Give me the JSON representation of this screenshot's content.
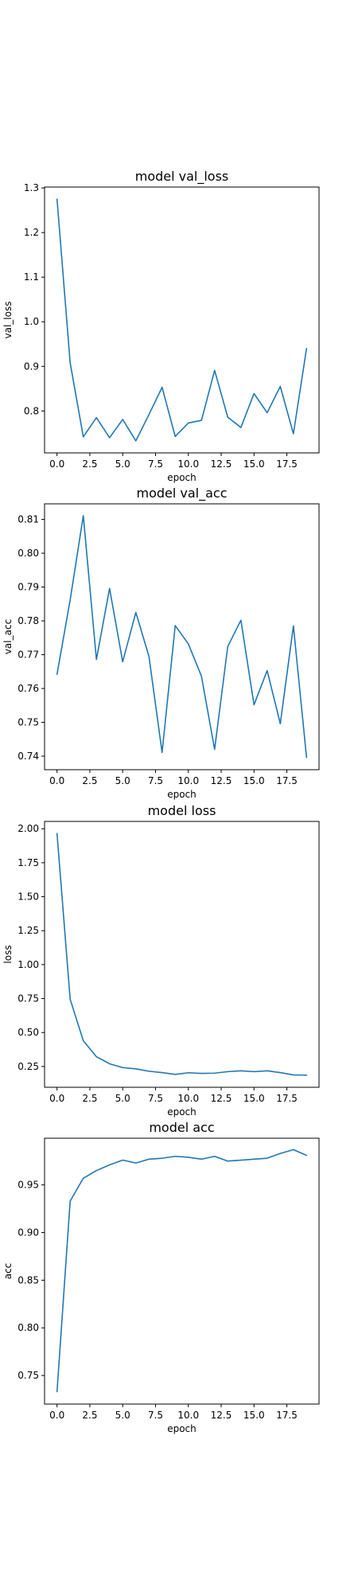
{
  "page": {
    "background": "#ffffff",
    "line_color": "#1f77b4",
    "axis_color": "#000000"
  },
  "chart_data": [
    {
      "type": "line",
      "title": "model val_loss",
      "xlabel": "epoch",
      "ylabel": "val_loss",
      "x": [
        0,
        1,
        2,
        3,
        4,
        5,
        6,
        7,
        8,
        9,
        10,
        11,
        12,
        13,
        14,
        15,
        16,
        17,
        18,
        19
      ],
      "series": [
        {
          "values": [
            1.275,
            0.908,
            0.742,
            0.785,
            0.74,
            0.781,
            0.733,
            0.792,
            0.853,
            0.743,
            0.773,
            0.779,
            0.891,
            0.786,
            0.763,
            0.839,
            0.796,
            0.855,
            0.749,
            0.94
          ]
        }
      ],
      "xlim": [
        -0.95,
        19.95
      ],
      "ylim": [
        0.706,
        1.302
      ],
      "xticks": [
        0.0,
        2.5,
        5.0,
        7.5,
        10.0,
        12.5,
        15.0,
        17.5
      ],
      "xtick_labels": [
        "0.0",
        "2.5",
        "5.0",
        "7.5",
        "10.0",
        "12.5",
        "15.0",
        "17.5"
      ],
      "yticks": [
        0.8,
        0.9,
        1.0,
        1.1,
        1.2,
        1.3
      ],
      "ytick_labels": [
        "0.8",
        "0.9",
        "1.0",
        "1.1",
        "1.2",
        "1.3"
      ],
      "grid": false,
      "legend": "none"
    },
    {
      "type": "line",
      "title": "model val_acc",
      "xlabel": "epoch",
      "ylabel": "val_acc",
      "x": [
        0,
        1,
        2,
        3,
        4,
        5,
        6,
        7,
        8,
        9,
        10,
        11,
        12,
        13,
        14,
        15,
        16,
        17,
        18,
        19
      ],
      "series": [
        {
          "values": [
            0.7642,
            0.7862,
            0.8111,
            0.7686,
            0.7896,
            0.7679,
            0.7825,
            0.7695,
            0.7411,
            0.7786,
            0.7732,
            0.7636,
            0.742,
            0.7724,
            0.7802,
            0.7552,
            0.7653,
            0.7496,
            0.7785,
            0.7396
          ]
        }
      ],
      "xlim": [
        -0.95,
        19.95
      ],
      "ylim": [
        0.736,
        0.8146
      ],
      "xticks": [
        0.0,
        2.5,
        5.0,
        7.5,
        10.0,
        12.5,
        15.0,
        17.5
      ],
      "xtick_labels": [
        "0.0",
        "2.5",
        "5.0",
        "7.5",
        "10.0",
        "12.5",
        "15.0",
        "17.5"
      ],
      "yticks": [
        0.74,
        0.75,
        0.76,
        0.77,
        0.78,
        0.79,
        0.8,
        0.81
      ],
      "ytick_labels": [
        "0.74",
        "0.75",
        "0.76",
        "0.77",
        "0.78",
        "0.79",
        "0.80",
        "0.81"
      ],
      "grid": false,
      "legend": "none"
    },
    {
      "type": "line",
      "title": "model loss",
      "xlabel": "epoch",
      "ylabel": "loss",
      "x": [
        0,
        1,
        2,
        3,
        4,
        5,
        6,
        7,
        8,
        9,
        10,
        11,
        12,
        13,
        14,
        15,
        16,
        17,
        18,
        19
      ],
      "series": [
        {
          "values": [
            1.965,
            0.745,
            0.44,
            0.322,
            0.27,
            0.242,
            0.233,
            0.215,
            0.205,
            0.192,
            0.204,
            0.199,
            0.201,
            0.212,
            0.218,
            0.212,
            0.218,
            0.205,
            0.188,
            0.186
          ]
        }
      ],
      "xlim": [
        -0.95,
        19.95
      ],
      "ylim": [
        0.097,
        2.054
      ],
      "xticks": [
        0.0,
        2.5,
        5.0,
        7.5,
        10.0,
        12.5,
        15.0,
        17.5
      ],
      "xtick_labels": [
        "0.0",
        "2.5",
        "5.0",
        "7.5",
        "10.0",
        "12.5",
        "15.0",
        "17.5"
      ],
      "yticks": [
        0.25,
        0.5,
        0.75,
        1.0,
        1.25,
        1.5,
        1.75,
        2.0
      ],
      "ytick_labels": [
        "0.25",
        "0.50",
        "0.75",
        "1.00",
        "1.25",
        "1.50",
        "1.75",
        "2.00"
      ],
      "grid": false,
      "legend": "none"
    },
    {
      "type": "line",
      "title": "model acc",
      "xlabel": "epoch",
      "ylabel": "acc",
      "x": [
        0,
        1,
        2,
        3,
        4,
        5,
        6,
        7,
        8,
        9,
        10,
        11,
        12,
        13,
        14,
        15,
        16,
        17,
        18,
        19
      ],
      "series": [
        {
          "values": [
            0.733,
            0.933,
            0.957,
            0.965,
            0.971,
            0.976,
            0.973,
            0.977,
            0.978,
            0.98,
            0.979,
            0.977,
            0.98,
            0.975,
            0.976,
            0.977,
            0.978,
            0.983,
            0.987,
            0.981
          ]
        }
      ],
      "xlim": [
        -0.95,
        19.95
      ],
      "ylim": [
        0.72,
        0.999
      ],
      "xticks": [
        0.0,
        2.5,
        5.0,
        7.5,
        10.0,
        12.5,
        15.0,
        17.5
      ],
      "xtick_labels": [
        "0.0",
        "2.5",
        "5.0",
        "7.5",
        "10.0",
        "12.5",
        "15.0",
        "17.5"
      ],
      "yticks": [
        0.75,
        0.8,
        0.85,
        0.9,
        0.95
      ],
      "ytick_labels": [
        "0.75",
        "0.80",
        "0.85",
        "0.90",
        "0.95"
      ],
      "grid": false,
      "legend": "none"
    }
  ]
}
